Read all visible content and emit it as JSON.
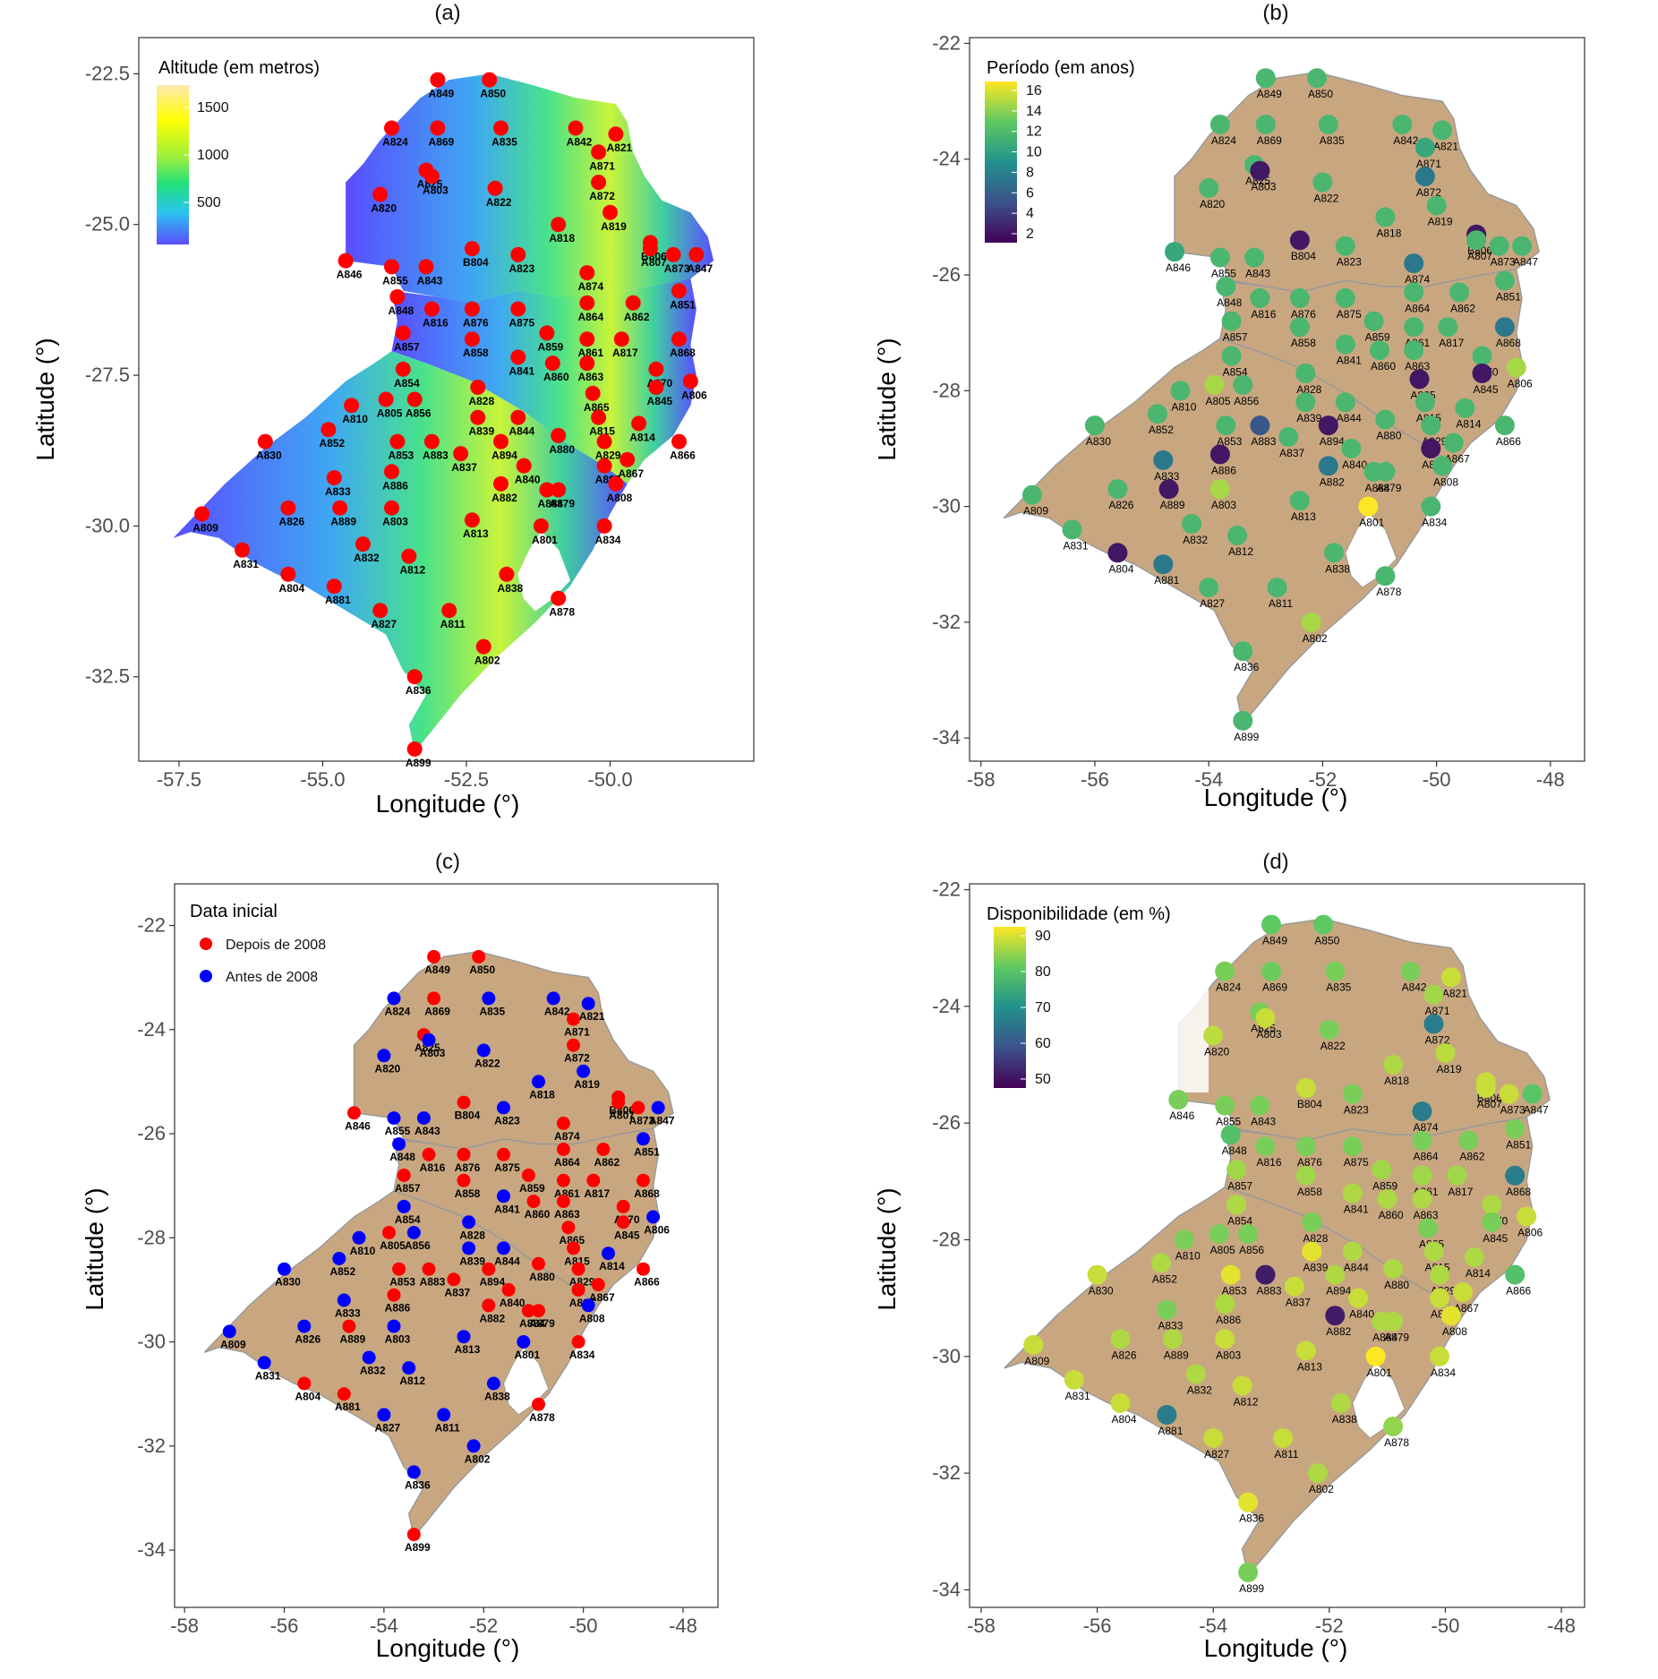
{
  "panels": [
    {
      "id": "a",
      "title": "(a)",
      "xlabel": "Longitude (°)",
      "ylabel": "Latitude (°)",
      "xlim": [
        -58.2,
        -47.5
      ],
      "ylim": [
        -33.9,
        -21.9
      ],
      "xticks": [
        -57.5,
        -55.0,
        -52.5,
        -50.0
      ],
      "xtick_labels": [
        "-57.5",
        "-55.0",
        "-52.5",
        "-50.0"
      ],
      "yticks": [
        -22.5,
        -25.0,
        -27.5,
        -30.0,
        -32.5
      ],
      "ytick_labels": [
        "-22.5",
        "-25.0",
        "-27.5",
        "-30.0",
        "-32.5"
      ],
      "legend_title": "Altitude (em metros)",
      "legend_labels": [
        "1500",
        "1000",
        "500"
      ],
      "point_color": "#ff0000",
      "label_style": "bold"
    },
    {
      "id": "b",
      "title": "(b)",
      "xlabel": "Longitude  (°)",
      "ylabel": "Latitude  (°)",
      "xlim": [
        -58.2,
        -47.4
      ],
      "ylim": [
        -34.4,
        -21.9
      ],
      "xticks": [
        -58,
        -56,
        -54,
        -52,
        -50,
        -48
      ],
      "xtick_labels": [
        "-58",
        "-56",
        "-54",
        "-52",
        "-50",
        "-48"
      ],
      "yticks": [
        -22,
        -24,
        -26,
        -28,
        -30,
        -32,
        -34
      ],
      "ytick_labels": [
        "-22",
        "-24",
        "-26",
        "-28",
        "-30",
        "-32",
        "-34"
      ],
      "legend_title": "Período (em anos)",
      "legend_labels": [
        "16",
        "14",
        "12",
        "10",
        "8",
        "6",
        "4",
        "2"
      ],
      "label_style": "normal"
    },
    {
      "id": "c",
      "title": "(c)",
      "xlabel": "Longitude  (°)",
      "ylabel": "Latitude  (°)",
      "xlim": [
        -58.2,
        -47.3
      ],
      "ylim": [
        -35.1,
        -21.2
      ],
      "xticks": [
        -58,
        -56,
        -54,
        -52,
        -50,
        -48
      ],
      "xtick_labels": [
        "-58",
        "-56",
        "-54",
        "-52",
        "-50",
        "-48"
      ],
      "yticks": [
        -22,
        -24,
        -26,
        -28,
        -30,
        -32,
        -34
      ],
      "ytick_labels": [
        "-22",
        "-24",
        "-26",
        "-28",
        "-30",
        "-32",
        "-34"
      ],
      "legend_title": "Data inicial",
      "legend_entries": [
        {
          "label": "Depois de 2008",
          "color": "#ff0000"
        },
        {
          "label": "Antes de 2008",
          "color": "#0000ff"
        }
      ],
      "label_style": "bold"
    },
    {
      "id": "d",
      "title": "(d)",
      "xlabel": "Longitude  (°)",
      "ylabel": "Latitude  (°)",
      "xlim": [
        -58.2,
        -47.6
      ],
      "ylim": [
        -34.3,
        -21.9
      ],
      "xticks": [
        -58,
        -56,
        -54,
        -52,
        -50,
        -48
      ],
      "xtick_labels": [
        "-58",
        "-56",
        "-54",
        "-52",
        "-50",
        "-48"
      ],
      "yticks": [
        -22,
        -24,
        -26,
        -28,
        -30,
        -32,
        -34
      ],
      "ytick_labels": [
        "-22",
        "-24",
        "-26",
        "-28",
        "-30",
        "-32",
        "-34"
      ],
      "legend_title": "Disponibilidade (em %)",
      "legend_labels": [
        "90",
        "80",
        "70",
        "60",
        "50"
      ],
      "label_style": "normal"
    }
  ],
  "chart_data": {
    "type": "scatter",
    "x_quantity": "Longitude",
    "y_quantity": "Latitude",
    "stations": [
      {
        "id": "A849",
        "lon": -53.0,
        "lat": -22.6,
        "period": 11,
        "availability": 82,
        "after_2008": true
      },
      {
        "id": "A850",
        "lon": -52.1,
        "lat": -22.6,
        "period": 11,
        "availability": 82,
        "after_2008": true
      },
      {
        "id": "A824",
        "lon": -53.8,
        "lat": -23.4,
        "period": 11,
        "availability": 84,
        "after_2008": false
      },
      {
        "id": "A869",
        "lon": -53.0,
        "lat": -23.4,
        "period": 11,
        "availability": 83,
        "after_2008": true
      },
      {
        "id": "A835",
        "lon": -51.9,
        "lat": -23.4,
        "period": 11,
        "availability": 84,
        "after_2008": false
      },
      {
        "id": "A842",
        "lon": -50.6,
        "lat": -23.4,
        "period": 11,
        "availability": 84,
        "after_2008": false
      },
      {
        "id": "A821",
        "lon": -49.9,
        "lat": -23.5,
        "period": 11,
        "availability": 90,
        "after_2008": false
      },
      {
        "id": "A871",
        "lon": -50.2,
        "lat": -23.8,
        "period": 10,
        "availability": 87,
        "after_2008": true
      },
      {
        "id": "A825",
        "lon": -53.2,
        "lat": -24.1,
        "period": 11,
        "availability": 84,
        "after_2008": true
      },
      {
        "id": "A803",
        "lon": -53.1,
        "lat": -24.2,
        "period": 2,
        "availability": 90,
        "after_2008": false
      },
      {
        "id": "A822",
        "lon": -52.0,
        "lat": -24.4,
        "period": 11,
        "availability": 84,
        "after_2008": false
      },
      {
        "id": "A872",
        "lon": -50.2,
        "lat": -24.3,
        "period": 7,
        "availability": 66,
        "after_2008": true
      },
      {
        "id": "A820",
        "lon": -54.0,
        "lat": -24.5,
        "period": 11,
        "availability": 89,
        "after_2008": false
      },
      {
        "id": "A819",
        "lon": -50.0,
        "lat": -24.8,
        "period": 11,
        "availability": 89,
        "after_2008": false
      },
      {
        "id": "A818",
        "lon": -50.9,
        "lat": -25.0,
        "period": 11,
        "availability": 88,
        "after_2008": false
      },
      {
        "id": "B804",
        "lon": -52.4,
        "lat": -25.4,
        "period": 2,
        "availability": 90,
        "after_2008": true
      },
      {
        "id": "B806",
        "lon": -49.3,
        "lat": -25.3,
        "period": 2,
        "availability": 90,
        "after_2008": true
      },
      {
        "id": "A846",
        "lon": -54.6,
        "lat": -25.6,
        "period": 10,
        "availability": 84,
        "after_2008": true
      },
      {
        "id": "A855",
        "lon": -53.8,
        "lat": -25.7,
        "period": 11,
        "availability": 84,
        "after_2008": false
      },
      {
        "id": "A843",
        "lon": -53.2,
        "lat": -25.7,
        "period": 11,
        "availability": 84,
        "after_2008": false
      },
      {
        "id": "A823",
        "lon": -51.6,
        "lat": -25.5,
        "period": 11,
        "availability": 84,
        "after_2008": false
      },
      {
        "id": "A874",
        "lon": -50.4,
        "lat": -25.8,
        "period": 7,
        "availability": 66,
        "after_2008": true
      },
      {
        "id": "A807",
        "lon": -49.3,
        "lat": -25.4,
        "period": 11,
        "availability": 90,
        "after_2008": true
      },
      {
        "id": "A873",
        "lon": -48.9,
        "lat": -25.5,
        "period": 11,
        "availability": 90,
        "after_2008": true
      },
      {
        "id": "A847",
        "lon": -48.5,
        "lat": -25.5,
        "period": 11,
        "availability": 81,
        "after_2008": false
      },
      {
        "id": "A848",
        "lon": -53.7,
        "lat": -26.2,
        "period": 11,
        "availability": 80,
        "after_2008": false
      },
      {
        "id": "A816",
        "lon": -53.1,
        "lat": -26.4,
        "period": 11,
        "availability": 84,
        "after_2008": true
      },
      {
        "id": "A876",
        "lon": -52.4,
        "lat": -26.4,
        "period": 11,
        "availability": 84,
        "after_2008": true
      },
      {
        "id": "A875",
        "lon": -51.6,
        "lat": -26.4,
        "period": 11,
        "availability": 84,
        "after_2008": true
      },
      {
        "id": "A864",
        "lon": -50.4,
        "lat": -26.3,
        "period": 11,
        "availability": 84,
        "after_2008": true
      },
      {
        "id": "A862",
        "lon": -49.6,
        "lat": -26.3,
        "period": 11,
        "availability": 84,
        "after_2008": true
      },
      {
        "id": "A851",
        "lon": -48.8,
        "lat": -26.1,
        "period": 11,
        "availability": 84,
        "after_2008": false
      },
      {
        "id": "A857",
        "lon": -53.6,
        "lat": -26.8,
        "period": 11,
        "availability": 87,
        "after_2008": true
      },
      {
        "id": "A858",
        "lon": -52.4,
        "lat": -26.9,
        "period": 11,
        "availability": 87,
        "after_2008": true
      },
      {
        "id": "A859",
        "lon": -51.1,
        "lat": -26.8,
        "period": 11,
        "availability": 87,
        "after_2008": true
      },
      {
        "id": "A861",
        "lon": -50.4,
        "lat": -26.9,
        "period": 11,
        "availability": 87,
        "after_2008": true
      },
      {
        "id": "A817",
        "lon": -49.8,
        "lat": -26.9,
        "period": 11,
        "availability": 87,
        "after_2008": true
      },
      {
        "id": "A868",
        "lon": -48.8,
        "lat": -26.9,
        "period": 7,
        "availability": 66,
        "after_2008": true
      },
      {
        "id": "A854",
        "lon": -53.6,
        "lat": -27.4,
        "period": 11,
        "availability": 88,
        "after_2008": false
      },
      {
        "id": "A841",
        "lon": -51.6,
        "lat": -27.2,
        "period": 11,
        "availability": 88,
        "after_2008": false
      },
      {
        "id": "A860",
        "lon": -51.0,
        "lat": -27.3,
        "period": 11,
        "availability": 88,
        "after_2008": true
      },
      {
        "id": "A863",
        "lon": -50.4,
        "lat": -27.3,
        "period": 11,
        "availability": 88,
        "after_2008": true
      },
      {
        "id": "A870",
        "lon": -49.2,
        "lat": -27.4,
        "period": 11,
        "availability": 88,
        "after_2008": true
      },
      {
        "id": "A806",
        "lon": -48.6,
        "lat": -27.6,
        "period": 14,
        "availability": 90,
        "after_2008": false
      },
      {
        "id": "A805",
        "lon": -53.9,
        "lat": -27.9,
        "period": 14,
        "availability": 84,
        "after_2008": true
      },
      {
        "id": "A856",
        "lon": -53.4,
        "lat": -27.9,
        "period": 11,
        "availability": 84,
        "after_2008": false
      },
      {
        "id": "A828",
        "lon": -52.3,
        "lat": -27.7,
        "period": 11,
        "availability": 84,
        "after_2008": false
      },
      {
        "id": "A865",
        "lon": -50.3,
        "lat": -27.8,
        "period": 2,
        "availability": 84,
        "after_2008": true
      },
      {
        "id": "A845",
        "lon": -49.2,
        "lat": -27.7,
        "period": 2,
        "availability": 84,
        "after_2008": true
      },
      {
        "id": "A810",
        "lon": -54.5,
        "lat": -28.0,
        "period": 11,
        "availability": 84,
        "after_2008": false
      },
      {
        "id": "A839",
        "lon": -52.3,
        "lat": -28.2,
        "period": 11,
        "availability": 92,
        "after_2008": false
      },
      {
        "id": "A844",
        "lon": -51.6,
        "lat": -28.2,
        "period": 11,
        "availability": 88,
        "after_2008": false
      },
      {
        "id": "A815",
        "lon": -50.2,
        "lat": -28.2,
        "period": 11,
        "availability": 88,
        "after_2008": true
      },
      {
        "id": "A814",
        "lon": -49.5,
        "lat": -28.3,
        "period": 11,
        "availability": 88,
        "after_2008": false
      },
      {
        "id": "A853",
        "lon": -53.7,
        "lat": -28.6,
        "period": 11,
        "availability": 92,
        "after_2008": true
      },
      {
        "id": "A883",
        "lon": -53.1,
        "lat": -28.6,
        "period": 5,
        "availability": 50,
        "after_2008": true
      },
      {
        "id": "A894",
        "lon": -51.9,
        "lat": -28.6,
        "period": 2,
        "availability": 88,
        "after_2008": true
      },
      {
        "id": "A880",
        "lon": -50.9,
        "lat": -28.5,
        "period": 11,
        "availability": 88,
        "after_2008": true
      },
      {
        "id": "A829",
        "lon": -50.1,
        "lat": -28.6,
        "period": 11,
        "availability": 88,
        "after_2008": true
      },
      {
        "id": "A866",
        "lon": -48.8,
        "lat": -28.6,
        "period": 11,
        "availability": 80,
        "after_2008": true
      },
      {
        "id": "A830",
        "lon": -56.0,
        "lat": -28.6,
        "period": 11,
        "availability": 90,
        "after_2008": false
      },
      {
        "id": "A852",
        "lon": -54.9,
        "lat": -28.4,
        "period": 11,
        "availability": 88,
        "after_2008": false
      },
      {
        "id": "A837",
        "lon": -52.6,
        "lat": -28.8,
        "period": 11,
        "availability": 90,
        "after_2008": true
      },
      {
        "id": "A840",
        "lon": -51.5,
        "lat": -29.0,
        "period": 11,
        "availability": 90,
        "after_2008": true
      },
      {
        "id": "A897",
        "lon": -50.1,
        "lat": -29.0,
        "period": 2,
        "availability": 90,
        "after_2008": true
      },
      {
        "id": "A867",
        "lon": -49.7,
        "lat": -28.9,
        "period": 11,
        "availability": 90,
        "after_2008": true
      },
      {
        "id": "A833",
        "lon": -54.8,
        "lat": -29.2,
        "period": 7,
        "availability": 84,
        "after_2008": false
      },
      {
        "id": "A886",
        "lon": -53.8,
        "lat": -29.1,
        "period": 2,
        "availability": 88,
        "after_2008": true
      },
      {
        "id": "A882",
        "lon": -51.9,
        "lat": -29.3,
        "period": 7,
        "availability": 50,
        "after_2008": true
      },
      {
        "id": "A884",
        "lon": -51.1,
        "lat": -29.4,
        "period": 11,
        "availability": 88,
        "after_2008": true
      },
      {
        "id": "A879",
        "lon": -50.9,
        "lat": -29.4,
        "period": 11,
        "availability": 88,
        "after_2008": true
      },
      {
        "id": "A808",
        "lon": -49.9,
        "lat": -29.3,
        "period": 11,
        "availability": 92,
        "after_2008": false
      },
      {
        "id": "A826",
        "lon": -55.6,
        "lat": -29.7,
        "period": 11,
        "availability": 88,
        "after_2008": false
      },
      {
        "id": "A889",
        "lon": -54.7,
        "lat": -29.7,
        "period": 2,
        "availability": 88,
        "after_2008": true
      },
      {
        "id": "A803s",
        "lon": -53.8,
        "lat": -29.7,
        "period": 14,
        "availability": 90,
        "after_2008": false
      },
      {
        "id": "A813",
        "lon": -52.4,
        "lat": -29.9,
        "period": 11,
        "availability": 90,
        "after_2008": false
      },
      {
        "id": "A801",
        "lon": -51.2,
        "lat": -30.0,
        "period": 16,
        "availability": 94,
        "after_2008": false
      },
      {
        "id": "A834",
        "lon": -50.1,
        "lat": -30.0,
        "period": 11,
        "availability": 90,
        "after_2008": true
      },
      {
        "id": "A809",
        "lon": -57.1,
        "lat": -29.8,
        "period": 11,
        "availability": 90,
        "after_2008": false
      },
      {
        "id": "A832",
        "lon": -54.3,
        "lat": -30.3,
        "period": 11,
        "availability": 88,
        "after_2008": false
      },
      {
        "id": "A812",
        "lon": -53.5,
        "lat": -30.5,
        "period": 11,
        "availability": 90,
        "after_2008": false
      },
      {
        "id": "A831",
        "lon": -56.4,
        "lat": -30.4,
        "period": 11,
        "availability": 90,
        "after_2008": false
      },
      {
        "id": "A804",
        "lon": -55.6,
        "lat": -30.8,
        "period": 2,
        "availability": 90,
        "after_2008": true
      },
      {
        "id": "A881",
        "lon": -54.8,
        "lat": -31.0,
        "period": 7,
        "availability": 66,
        "after_2008": true
      },
      {
        "id": "A838",
        "lon": -51.8,
        "lat": -30.8,
        "period": 11,
        "availability": 88,
        "after_2008": false
      },
      {
        "id": "A878",
        "lon": -50.9,
        "lat": -31.2,
        "period": 11,
        "availability": 86,
        "after_2008": true
      },
      {
        "id": "A827",
        "lon": -54.0,
        "lat": -31.4,
        "period": 11,
        "availability": 90,
        "after_2008": false
      },
      {
        "id": "A811",
        "lon": -52.8,
        "lat": -31.4,
        "period": 11,
        "availability": 90,
        "after_2008": false
      },
      {
        "id": "A802",
        "lon": -52.2,
        "lat": -32.0,
        "period": 14,
        "availability": 88,
        "after_2008": false
      },
      {
        "id": "A836",
        "lon": -53.4,
        "lat": -32.5,
        "period": 11,
        "availability": 92,
        "after_2008": false
      },
      {
        "id": "A899",
        "lon": -53.4,
        "lat": -33.7,
        "period": 11,
        "availability": 84,
        "after_2008": true
      }
    ],
    "station_labels_display": {
      "A803s": "A803"
    },
    "grid": false,
    "legend_placement": "top-left"
  }
}
